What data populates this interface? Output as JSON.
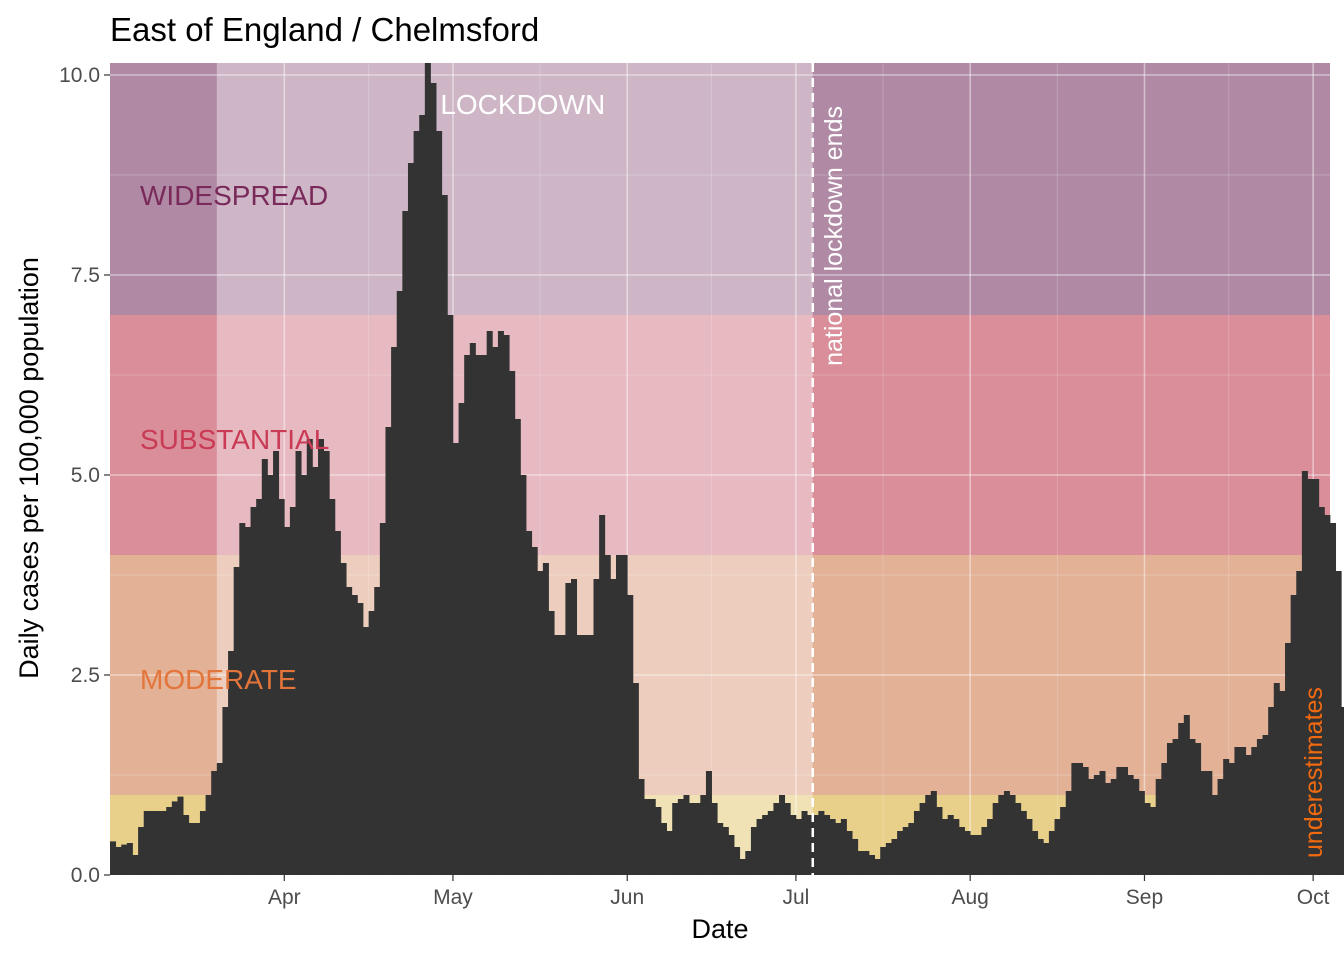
{
  "chart_data": {
    "type": "bar",
    "title": "East of England / Chelmsford",
    "xlabel": "Date",
    "ylabel": "Daily cases per 100,000 population",
    "ylim": [
      0,
      10.15
    ],
    "y_ticks": [
      {
        "value": 0,
        "label": "0.0"
      },
      {
        "value": 2.5,
        "label": "2.5"
      },
      {
        "value": 5,
        "label": "5.0"
      },
      {
        "value": 7.5,
        "label": "7.5"
      },
      {
        "value": 10,
        "label": "10.0"
      }
    ],
    "x_start": "2020-03-01",
    "x_end": "2020-10-03",
    "x_ticks": [
      {
        "date": "2020-04-01",
        "label": "Apr"
      },
      {
        "date": "2020-05-01",
        "label": "May"
      },
      {
        "date": "2020-06-01",
        "label": "Jun"
      },
      {
        "date": "2020-07-01",
        "label": "Jul"
      },
      {
        "date": "2020-08-01",
        "label": "Aug"
      },
      {
        "date": "2020-09-01",
        "label": "Sep"
      },
      {
        "date": "2020-10-01",
        "label": "Oct"
      }
    ],
    "grid": true,
    "bands": [
      {
        "name": "LOW",
        "label": "",
        "from": 0,
        "to": 1,
        "color": "#e8d08a"
      },
      {
        "name": "MODERATE",
        "label": "MODERATE",
        "from": 1,
        "to": 4,
        "color": "#e2b196",
        "label_color": "#e3743a"
      },
      {
        "name": "SUBSTANTIAL",
        "label": "SUBSTANTIAL",
        "from": 4,
        "to": 7,
        "color": "#d98e9a",
        "label_color": "#c93a55"
      },
      {
        "name": "WIDESPREAD",
        "label": "WIDESPREAD",
        "from": 7,
        "to": 10.15,
        "color": "#b08aa5",
        "label_color": "#7a2a5a"
      }
    ],
    "lockdown": {
      "label": "LOCKDOWN",
      "start": "2020-03-20",
      "end": "2020-07-04",
      "overlay_color": "#ffffff"
    },
    "lockdown_ends": {
      "date": "2020-07-04",
      "label": "national lockdown ends"
    },
    "underestimate_note": "underestimates",
    "bar_color": "#333333",
    "series": [
      {
        "start": "2020-03-01",
        "values": [
          0.42,
          0.35,
          0.38,
          0.4,
          0.25,
          0.6,
          0.8,
          0.8,
          0.8,
          0.8,
          0.85,
          0.92,
          0.98,
          0.75,
          0.65,
          0.65,
          0.8,
          1.0,
          1.3,
          1.4,
          2.1,
          2.8,
          3.85,
          4.4,
          4.35,
          4.6,
          4.7,
          5.2,
          5.0,
          5.3,
          4.7,
          4.35,
          4.6,
          5.3,
          5.0,
          5.45,
          5.1,
          5.45,
          5.3,
          4.7,
          4.3,
          3.9,
          3.6,
          3.5,
          3.4,
          3.1,
          3.3,
          3.6,
          4.4,
          5.6,
          6.6,
          7.3,
          8.3,
          8.9,
          9.3,
          9.5,
          10.15,
          9.9,
          9.3,
          8.5,
          7.0,
          5.4,
          5.9,
          6.5,
          6.65,
          6.5,
          6.5,
          6.8,
          6.6,
          6.8,
          6.75,
          6.3,
          5.7,
          5.0,
          4.3,
          4.1,
          3.8,
          3.9,
          3.3,
          3.0,
          3.0,
          3.65,
          3.7,
          3.0,
          3.0,
          3.0,
          3.7,
          4.5,
          4.0,
          3.7,
          4.0,
          4.0,
          3.5,
          2.4,
          1.2,
          0.95,
          0.95,
          0.85,
          0.65,
          0.55,
          0.9,
          0.95,
          1.0,
          0.9,
          0.9,
          1.0,
          1.3,
          0.9,
          0.65,
          0.6,
          0.5,
          0.35,
          0.2,
          0.3,
          0.6,
          0.7,
          0.75,
          0.8,
          0.9,
          1.0,
          0.9,
          0.75,
          0.7,
          0.8,
          0.75,
          0.75,
          0.8,
          0.75,
          0.7,
          0.65,
          0.7,
          0.55,
          0.45,
          0.3,
          0.3,
          0.25,
          0.2,
          0.35,
          0.4,
          0.45,
          0.55,
          0.6,
          0.65,
          0.8,
          0.9,
          1.0,
          1.05,
          0.85,
          0.7,
          0.75,
          0.7,
          0.6,
          0.55,
          0.5,
          0.5,
          0.6,
          0.7,
          0.9,
          1.0,
          1.05,
          1.0,
          0.9,
          0.8,
          0.7,
          0.55,
          0.45,
          0.4,
          0.55,
          0.7,
          0.85,
          1.05,
          1.4,
          1.4,
          1.35,
          1.2,
          1.25,
          1.3,
          1.15,
          1.2,
          1.35,
          1.35,
          1.25,
          1.2,
          1.05,
          0.9,
          0.85,
          1.2,
          1.4,
          1.65,
          1.7,
          1.9,
          2.0,
          1.7,
          1.65,
          1.3,
          1.3,
          1.0,
          1.2,
          1.45,
          1.4,
          1.6,
          1.6,
          1.5,
          1.6,
          1.7,
          1.75,
          2.1,
          2.4,
          2.3,
          2.9,
          3.5,
          3.8,
          5.05,
          4.95,
          4.95,
          4.6,
          4.5,
          4.4,
          3.8,
          2.1
        ]
      }
    ]
  }
}
